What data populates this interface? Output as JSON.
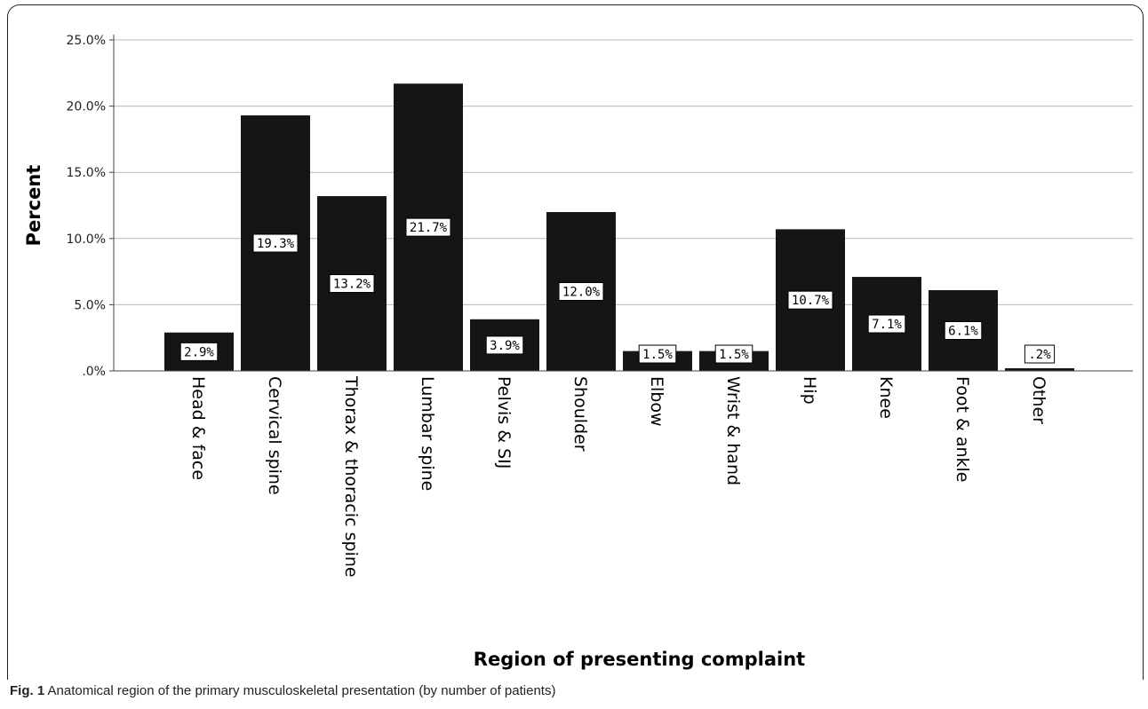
{
  "chart_data": {
    "type": "bar",
    "xlabel": "Region of presenting complaint",
    "ylabel": "Percent",
    "ylim": [
      0,
      25
    ],
    "yticks": [
      0,
      5,
      10,
      15,
      20,
      25
    ],
    "ytick_labels": [
      ".0%",
      "5.0%",
      "10.0%",
      "15.0%",
      "20.0%",
      "25.0%"
    ],
    "grid": true,
    "bar_color": "#151515",
    "categories": [
      "Head & face",
      "Cervical spine",
      "Thorax & thoracic spine",
      "Lumbar spine",
      "Pelvis & SIJ",
      "Shoulder",
      "Elbow",
      "Wrist & hand",
      "Hip",
      "Knee",
      "Foot & ankle",
      "Other"
    ],
    "values": [
      2.9,
      19.3,
      13.2,
      21.7,
      3.9,
      12.0,
      1.5,
      1.5,
      10.7,
      7.1,
      6.1,
      0.2
    ],
    "data_labels": [
      "2.9%",
      "19.3%",
      "13.2%",
      "21.7%",
      "3.9%",
      "12.0%",
      "1.5%",
      "1.5%",
      "10.7%",
      "7.1%",
      "6.1%",
      ".2%"
    ]
  },
  "caption": {
    "lead": "Fig. 1",
    "text": " Anatomical region of the primary musculoskeletal presentation (by number of patients)"
  }
}
